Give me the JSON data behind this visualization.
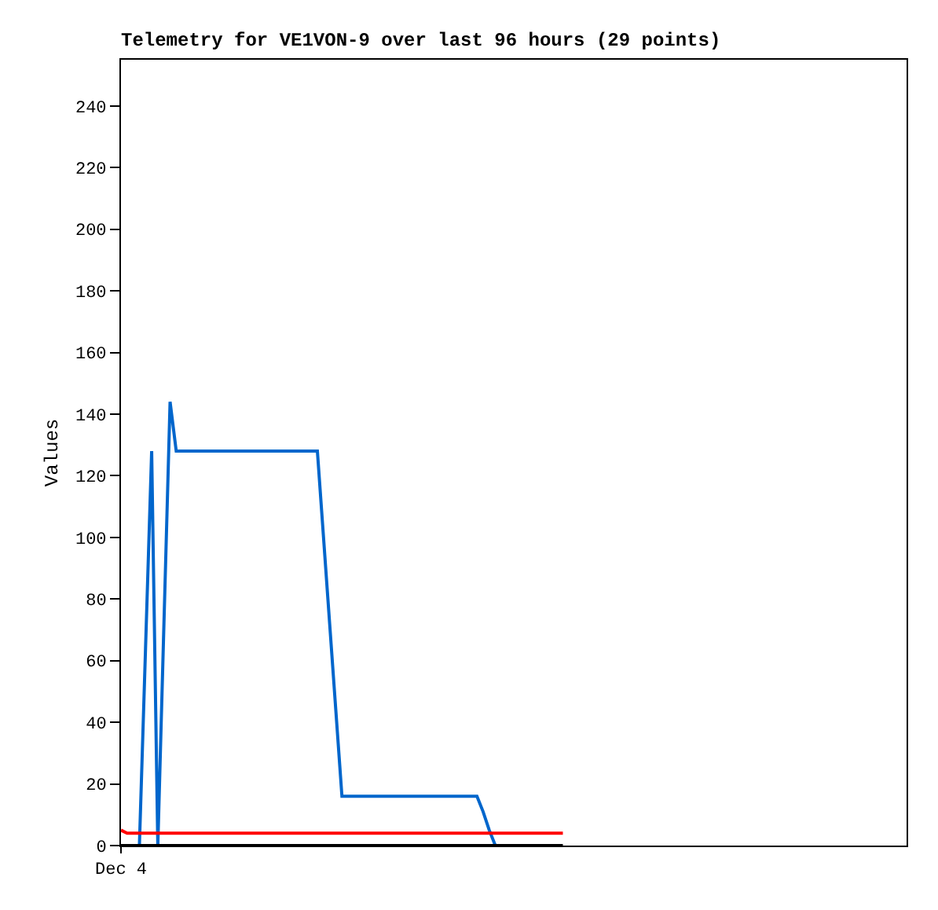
{
  "chart_data": {
    "type": "line",
    "title": "Telemetry for VE1VON-9 over last 96 hours (29 points)",
    "ylabel": "Values",
    "categories": [
      "Dec 4",
      null,
      null,
      null,
      null,
      null,
      null,
      null,
      null,
      null,
      null,
      null,
      null,
      null,
      null,
      null,
      null,
      null,
      null,
      null,
      null,
      null,
      null,
      null,
      null,
      null,
      null,
      null,
      null,
      null,
      null,
      null,
      null,
      null,
      null,
      null,
      null,
      null,
      null,
      null,
      null,
      null,
      null,
      null,
      null,
      null,
      null,
      null,
      null,
      null,
      null,
      null,
      null,
      null,
      null,
      null,
      null,
      null,
      null,
      null,
      null,
      null,
      null,
      null,
      null,
      null,
      null,
      null,
      null,
      null,
      null,
      null,
      null,
      null,
      null,
      null,
      null,
      null,
      null,
      null,
      null,
      null,
      null,
      null,
      null,
      null,
      null,
      null,
      null,
      null,
      null,
      null,
      null,
      null,
      null,
      null,
      null,
      null,
      null,
      null,
      null,
      null,
      null,
      null,
      null,
      null,
      null,
      null,
      null,
      null,
      null,
      null,
      null,
      null,
      null,
      null,
      null,
      null,
      null,
      null,
      null,
      null,
      null,
      null,
      null,
      null,
      null,
      null,
      null
    ],
    "series": [
      {
        "color": "#0066cc",
        "values": [
          null,
          null,
          null,
          0,
          64,
          128,
          0,
          72,
          144,
          128,
          128,
          128,
          128,
          128,
          128,
          128,
          128,
          128,
          128,
          128,
          128,
          128,
          128,
          128,
          128,
          128,
          128,
          128,
          128,
          128,
          128,
          128,
          128,
          100,
          72,
          44,
          16,
          16,
          16,
          16,
          16,
          16,
          16,
          16,
          16,
          16,
          16,
          16,
          16,
          16,
          16,
          16,
          16,
          16,
          16,
          16,
          16,
          16,
          16,
          11,
          5,
          0,
          null,
          null,
          null,
          null,
          null,
          null,
          null,
          null,
          null,
          null,
          null,
          null,
          null,
          null,
          null,
          null,
          null,
          null,
          null,
          null,
          null,
          null,
          null,
          null,
          null,
          null,
          null,
          null,
          null,
          null,
          null,
          null,
          null,
          null,
          null,
          null,
          null,
          null,
          null,
          null,
          null,
          null,
          null,
          null,
          null,
          null,
          null,
          null,
          null,
          null,
          null,
          null,
          null,
          null,
          null,
          null,
          null,
          null,
          null,
          null,
          null,
          null,
          null,
          null,
          null,
          null,
          null
        ]
      },
      {
        "color": "#ff0000",
        "values": [
          5,
          4,
          4,
          4,
          4,
          4,
          4,
          4,
          4,
          4,
          4,
          4,
          4,
          4,
          4,
          4,
          4,
          4,
          4,
          4,
          4,
          4,
          4,
          4,
          4,
          4,
          4,
          4,
          4,
          4,
          4,
          4,
          4,
          4,
          4,
          4,
          4,
          4,
          4,
          4,
          4,
          4,
          4,
          4,
          4,
          4,
          4,
          4,
          4,
          4,
          4,
          4,
          4,
          4,
          4,
          4,
          4,
          4,
          4,
          4,
          4,
          4,
          4,
          4,
          4,
          4,
          4,
          4,
          4,
          4,
          4,
          4,
          4,
          null,
          null,
          null,
          null,
          null,
          null,
          null,
          null,
          null,
          null,
          null,
          null,
          null,
          null,
          null,
          null,
          null,
          null,
          null,
          null,
          null,
          null,
          null,
          null,
          null,
          null,
          null,
          null,
          null,
          null,
          null,
          null,
          null,
          null,
          null,
          null,
          null,
          null,
          null,
          null,
          null,
          null,
          null,
          null,
          null,
          null,
          null,
          null,
          null,
          null,
          null,
          null,
          null,
          null,
          null,
          null
        ]
      },
      {
        "color": "#000000",
        "values": [
          0,
          0,
          0,
          0,
          0,
          0,
          0,
          0,
          0,
          0,
          0,
          0,
          0,
          0,
          0,
          0,
          0,
          0,
          0,
          0,
          0,
          0,
          0,
          0,
          0,
          0,
          0,
          0,
          0,
          0,
          0,
          0,
          0,
          0,
          0,
          0,
          0,
          0,
          0,
          0,
          0,
          0,
          0,
          0,
          0,
          0,
          0,
          0,
          0,
          0,
          0,
          0,
          0,
          0,
          0,
          0,
          0,
          0,
          0,
          0,
          0,
          0,
          0,
          0,
          0,
          0,
          0,
          0,
          0,
          0,
          0,
          0,
          0,
          null,
          null,
          null,
          null,
          null,
          null,
          null,
          null,
          null,
          null,
          null,
          null,
          null,
          null,
          null,
          null,
          null,
          null,
          null,
          null,
          null,
          null,
          null,
          null,
          null,
          null,
          null,
          null,
          null,
          null,
          null,
          null,
          null,
          null,
          null,
          null,
          null,
          null,
          null,
          null,
          null,
          null,
          null,
          null,
          null,
          null,
          null,
          null,
          null,
          null,
          null,
          null,
          null,
          null,
          null,
          null
        ]
      }
    ],
    "ylim": [
      0,
      255
    ],
    "yticks": [
      0,
      20,
      40,
      60,
      80,
      100,
      120,
      140,
      160,
      180,
      200,
      220,
      240
    ],
    "legend": false,
    "marker": "none",
    "line_style": "solid"
  }
}
